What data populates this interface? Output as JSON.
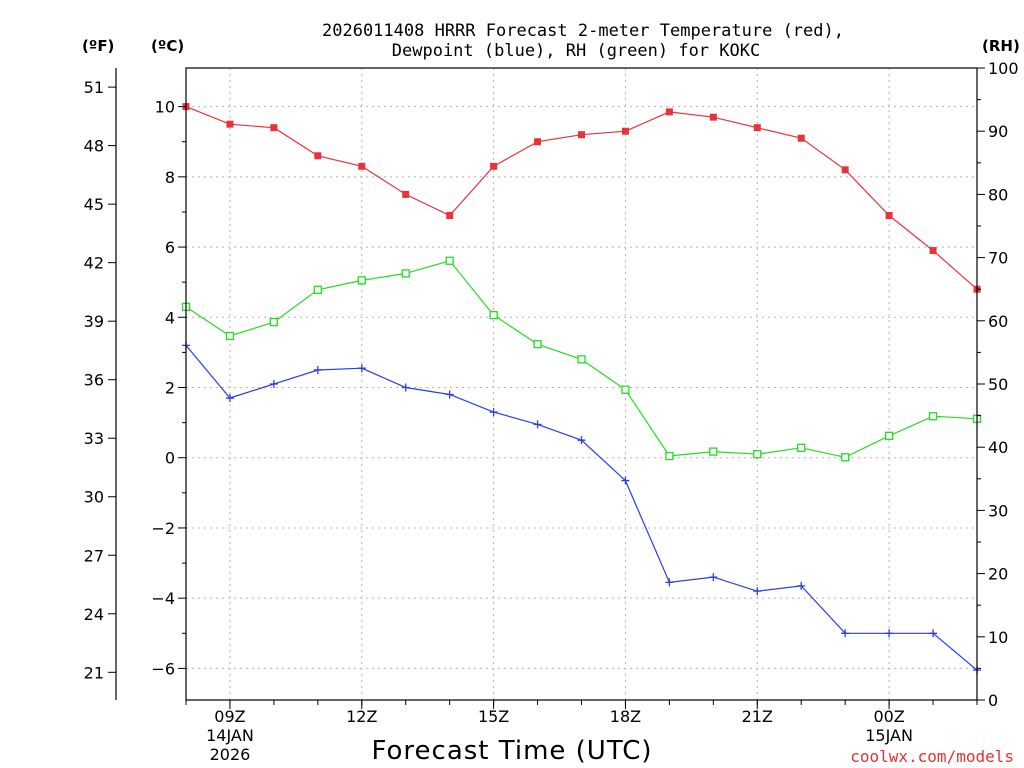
{
  "chart_data": {
    "type": "line",
    "title_line1": "2026011408 HRRR Forecast 2-meter Temperature (red),",
    "title_line2": "Dewpoint (blue), RH (green) for KOKC",
    "unit_f": "(ºF)",
    "unit_c": "(ºC)",
    "unit_rh": "(RH)",
    "xlabel": "Forecast Time (UTC)",
    "credit": "coolwx.com/models",
    "x_hours": [
      8,
      9,
      10,
      11,
      12,
      13,
      14,
      15,
      16,
      17,
      18,
      19,
      20,
      21,
      22,
      23,
      24,
      25,
      26
    ],
    "xlim": [
      8,
      26
    ],
    "ylim_c": [
      -6.9,
      11.1
    ],
    "ylim_rh": [
      0,
      100
    ],
    "x_ticks": [
      {
        "hour": 9,
        "label": "09Z",
        "date": "14JAN",
        "year": "2026"
      },
      {
        "hour": 12,
        "label": "12Z",
        "date": "",
        "year": ""
      },
      {
        "hour": 15,
        "label": "15Z",
        "date": "",
        "year": ""
      },
      {
        "hour": 18,
        "label": "18Z",
        "date": "",
        "year": ""
      },
      {
        "hour": 21,
        "label": "21Z",
        "date": "",
        "year": ""
      },
      {
        "hour": 24,
        "label": "00Z",
        "date": "15JAN",
        "year": ""
      }
    ],
    "c_ticks": [
      {
        "v": 10,
        "label": "10"
      },
      {
        "v": 8,
        "label": "8"
      },
      {
        "v": 6,
        "label": "6"
      },
      {
        "v": 4,
        "label": "4"
      },
      {
        "v": 2,
        "label": "2"
      },
      {
        "v": 0,
        "label": "0"
      },
      {
        "v": -2,
        "label": "−2"
      },
      {
        "v": -4,
        "label": "−4"
      },
      {
        "v": -6,
        "label": "−6"
      }
    ],
    "f_ticks": [
      {
        "v": 51,
        "label": "51"
      },
      {
        "v": 48,
        "label": "48"
      },
      {
        "v": 45,
        "label": "45"
      },
      {
        "v": 42,
        "label": "42"
      },
      {
        "v": 39,
        "label": "39"
      },
      {
        "v": 36,
        "label": "36"
      },
      {
        "v": 33,
        "label": "33"
      },
      {
        "v": 30,
        "label": "30"
      },
      {
        "v": 27,
        "label": "27"
      },
      {
        "v": 24,
        "label": "24"
      },
      {
        "v": 21,
        "label": "21"
      }
    ],
    "rh_ticks": [
      {
        "v": 100,
        "label": "100"
      },
      {
        "v": 90,
        "label": "90"
      },
      {
        "v": 80,
        "label": "80"
      },
      {
        "v": 70,
        "label": "70"
      },
      {
        "v": 60,
        "label": "60"
      },
      {
        "v": 50,
        "label": "50"
      },
      {
        "v": 40,
        "label": "40"
      },
      {
        "v": 30,
        "label": "30"
      },
      {
        "v": 20,
        "label": "20"
      },
      {
        "v": 10,
        "label": "10"
      },
      {
        "v": 0,
        "label": "0"
      }
    ],
    "series": [
      {
        "name": "Temperature",
        "axis": "c",
        "color": "#e8333a",
        "marker": "filled-square",
        "values": [
          10.0,
          9.5,
          9.4,
          8.6,
          8.3,
          7.5,
          6.9,
          8.3,
          9.0,
          9.2,
          9.3,
          9.85,
          9.7,
          9.4,
          9.1,
          8.2,
          6.9,
          5.9,
          4.8
        ]
      },
      {
        "name": "Dewpoint",
        "axis": "c",
        "color": "#2a3de8",
        "marker": "plus",
        "values": [
          3.2,
          1.7,
          2.1,
          2.5,
          2.55,
          2.0,
          1.8,
          1.3,
          0.95,
          0.5,
          -0.65,
          -3.55,
          -3.4,
          -3.8,
          -3.65,
          -5.0,
          -5.0,
          -5.0,
          -6.05
        ]
      },
      {
        "name": "RH",
        "axis": "rh",
        "color": "#22dd22",
        "marker": "open-square",
        "values": [
          62.2,
          57.6,
          59.8,
          64.9,
          66.4,
          67.5,
          69.5,
          60.9,
          56.3,
          53.9,
          49.1,
          38.6,
          39.3,
          38.9,
          39.9,
          38.4,
          41.8,
          44.9,
          44.5
        ]
      }
    ]
  }
}
